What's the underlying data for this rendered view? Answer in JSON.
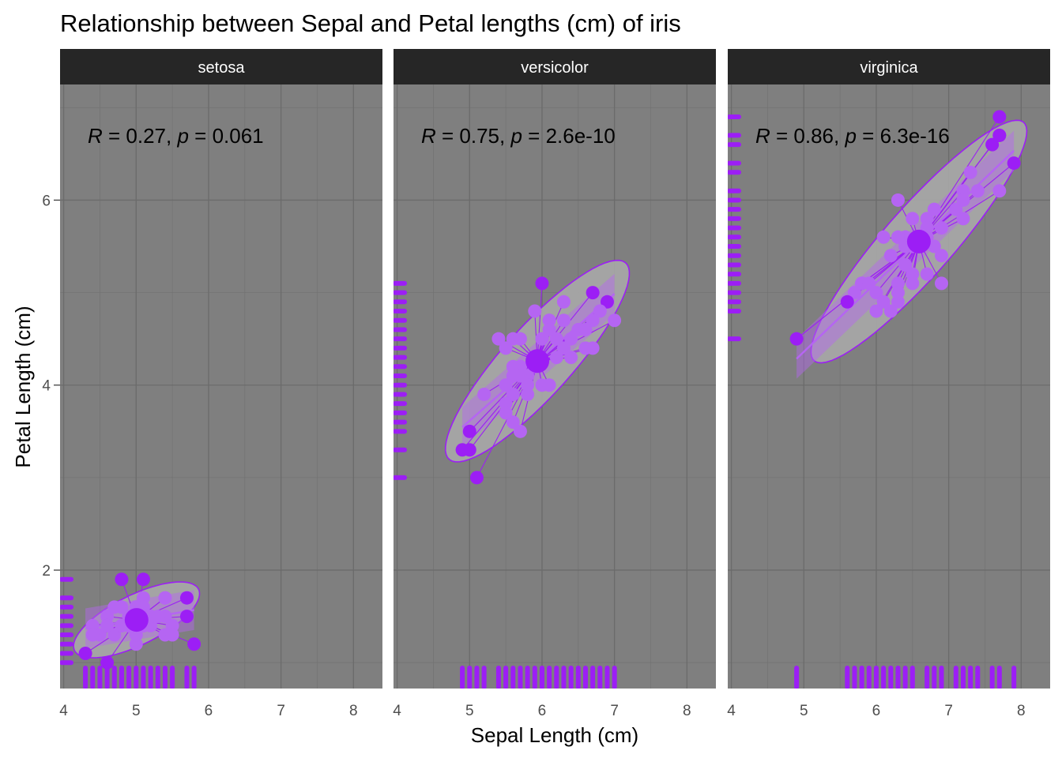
{
  "chart_data": {
    "type": "scatter",
    "title": "Relationship between Sepal and Petal lengths (cm) of iris",
    "xlabel": "Sepal Length (cm)",
    "ylabel": "Petal Length (cm)",
    "xlim": [
      3.95,
      8.4
    ],
    "ylim": [
      0.72,
      7.25
    ],
    "x_ticks": [
      4,
      5,
      6,
      7,
      8
    ],
    "y_ticks": [
      2,
      4,
      6
    ],
    "grid": true,
    "rug": true,
    "ellipse": true,
    "centroid_spokes": true,
    "colors": {
      "point": "#9c1ef5",
      "point_light": "#b565f2",
      "ellipse_fill": "#a8a8a8",
      "ellipse_stroke": "#9c1ef5",
      "panel_bg": "#7f7f7f",
      "grid_major": "#6b6b6b",
      "grid_minor": "#737373",
      "strip_bg": "#262626"
    },
    "panels": [
      {
        "label": "setosa",
        "stat": {
          "r_symbol": "R",
          "r_text": " = 0.27, ",
          "p_symbol": "p",
          "p_text": " = 0.061"
        },
        "centroid": [
          5.006,
          1.462
        ],
        "ellipse": {
          "cx": 5.006,
          "cy": 1.462,
          "rx": 0.92,
          "ry": 0.28,
          "angle_deg": 20
        },
        "fit": {
          "x0": 4.3,
          "x1": 5.8,
          "slope": 0.132,
          "intercept": 0.803
        },
        "x": [
          5.1,
          4.9,
          4.7,
          4.6,
          5.0,
          5.4,
          4.6,
          5.0,
          4.4,
          4.9,
          5.4,
          4.8,
          4.8,
          4.3,
          5.8,
          5.7,
          5.4,
          5.1,
          5.7,
          5.1,
          5.4,
          5.1,
          4.6,
          5.1,
          4.8,
          5.0,
          5.0,
          5.2,
          5.2,
          4.7,
          4.8,
          5.4,
          5.2,
          5.5,
          4.9,
          5.0,
          5.5,
          4.9,
          4.4,
          5.1,
          5.0,
          4.5,
          4.4,
          5.0,
          5.1,
          4.8,
          5.1,
          4.6,
          5.3,
          5.0
        ],
        "y": [
          1.4,
          1.4,
          1.3,
          1.5,
          1.4,
          1.7,
          1.4,
          1.5,
          1.4,
          1.5,
          1.5,
          1.6,
          1.4,
          1.1,
          1.2,
          1.5,
          1.3,
          1.4,
          1.7,
          1.5,
          1.7,
          1.5,
          1.0,
          1.7,
          1.9,
          1.6,
          1.6,
          1.5,
          1.4,
          1.6,
          1.6,
          1.5,
          1.5,
          1.4,
          1.5,
          1.2,
          1.3,
          1.4,
          1.3,
          1.5,
          1.3,
          1.3,
          1.3,
          1.6,
          1.9,
          1.4,
          1.6,
          1.4,
          1.5,
          1.4
        ]
      },
      {
        "label": "versicolor",
        "stat": {
          "r_symbol": "R",
          "r_text": " = 0.75, ",
          "p_symbol": "p",
          "p_text": " = 2.6e-10"
        },
        "centroid": [
          5.936,
          4.26
        ],
        "ellipse": {
          "cx": 5.936,
          "cy": 4.26,
          "rx": 1.62,
          "ry": 0.42,
          "angle_deg": 40
        },
        "fit": {
          "x0": 4.9,
          "x1": 7.0,
          "slope": 0.686,
          "intercept": 0.185
        },
        "x": [
          7.0,
          6.4,
          6.9,
          5.5,
          6.5,
          5.7,
          6.3,
          4.9,
          6.6,
          5.2,
          5.0,
          5.9,
          6.0,
          6.1,
          5.6,
          6.7,
          5.6,
          5.8,
          6.2,
          5.6,
          5.9,
          6.1,
          6.3,
          6.1,
          6.4,
          6.6,
          6.8,
          6.7,
          6.0,
          5.7,
          5.5,
          5.5,
          5.8,
          6.0,
          5.4,
          6.0,
          6.7,
          6.3,
          5.6,
          5.5,
          5.5,
          6.1,
          5.8,
          5.0,
          5.6,
          5.7,
          5.7,
          6.2,
          5.1,
          5.7
        ],
        "y": [
          4.7,
          4.5,
          4.9,
          4.0,
          4.6,
          4.5,
          4.7,
          3.3,
          4.6,
          3.9,
          3.5,
          4.2,
          4.0,
          4.7,
          3.6,
          4.4,
          4.5,
          4.1,
          4.5,
          3.9,
          4.8,
          4.0,
          4.9,
          4.7,
          4.3,
          4.4,
          4.8,
          5.0,
          4.5,
          3.5,
          3.8,
          3.7,
          3.9,
          5.1,
          4.5,
          4.5,
          4.7,
          4.4,
          4.1,
          4.0,
          4.4,
          4.6,
          4.0,
          3.3,
          4.2,
          4.2,
          4.2,
          4.3,
          3.0,
          4.1
        ]
      },
      {
        "label": "virginica",
        "stat": {
          "r_symbol": "R",
          "r_text": " = 0.86, ",
          "p_symbol": "p",
          "p_text": " = 6.3e-16"
        },
        "centroid": [
          6.588,
          5.552
        ],
        "ellipse": {
          "cx": 6.588,
          "cy": 5.552,
          "rx": 1.94,
          "ry": 0.42,
          "angle_deg": 41
        },
        "fit": {
          "x0": 4.9,
          "x1": 7.9,
          "slope": 0.75,
          "intercept": 0.61
        },
        "x": [
          6.3,
          5.8,
          7.1,
          6.3,
          6.5,
          7.6,
          4.9,
          7.3,
          6.7,
          7.2,
          6.5,
          6.4,
          6.8,
          5.7,
          5.8,
          6.4,
          6.5,
          7.7,
          7.7,
          6.0,
          6.9,
          5.6,
          7.7,
          6.3,
          6.7,
          7.2,
          6.2,
          6.1,
          6.4,
          7.2,
          7.4,
          7.9,
          6.4,
          6.3,
          6.1,
          7.7,
          6.3,
          6.4,
          6.0,
          6.9,
          6.7,
          6.9,
          5.8,
          6.8,
          6.7,
          6.7,
          6.3,
          6.5,
          6.2,
          5.9
        ],
        "y": [
          6.0,
          5.1,
          5.9,
          5.6,
          5.8,
          6.6,
          4.5,
          6.3,
          5.8,
          6.1,
          5.1,
          5.3,
          5.5,
          5.0,
          5.1,
          5.3,
          5.5,
          6.7,
          6.9,
          5.0,
          5.7,
          4.9,
          6.7,
          4.9,
          5.7,
          6.0,
          4.8,
          4.9,
          5.6,
          5.8,
          6.1,
          6.4,
          5.6,
          5.1,
          5.6,
          6.1,
          5.6,
          5.5,
          4.8,
          5.4,
          5.6,
          5.1,
          5.1,
          5.9,
          5.7,
          5.2,
          5.0,
          5.2,
          5.4,
          5.1
        ]
      }
    ]
  }
}
